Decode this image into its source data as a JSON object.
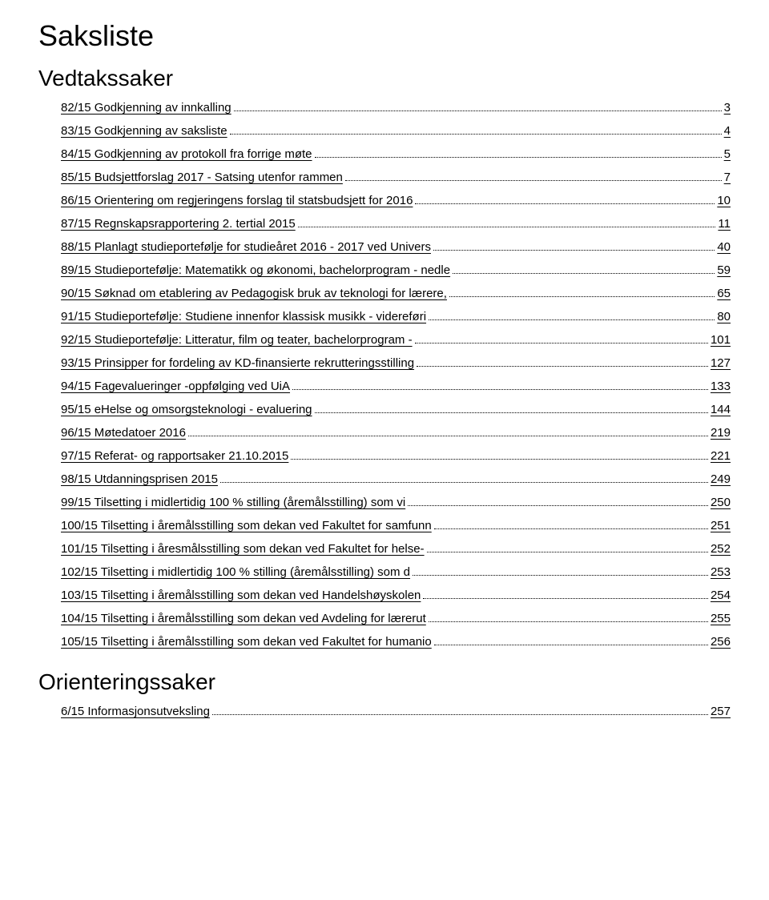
{
  "title": "Saksliste",
  "sections": [
    {
      "heading": "Vedtakssaker",
      "items": [
        {
          "label": "82/15 Godkjenning av innkalling",
          "page": "3"
        },
        {
          "label": "83/15 Godkjenning av saksliste",
          "page": "4"
        },
        {
          "label": "84/15 Godkjenning av protokoll fra forrige møte",
          "page": "5"
        },
        {
          "label": "85/15 Budsjettforslag 2017 - Satsing utenfor rammen",
          "page": "7"
        },
        {
          "label": "86/15 Orientering om regjeringens forslag til statsbudsjett for 2016",
          "page": "10"
        },
        {
          "label": "87/15 Regnskapsrapportering 2. tertial 2015",
          "page": "11"
        },
        {
          "label": "88/15 Planlagt studieportefølje for studieåret 2016 - 2017 ved Univers",
          "page": "40"
        },
        {
          "label": "89/15 Studieportefølje: Matematikk og økonomi, bachelorprogram - nedle",
          "page": "59"
        },
        {
          "label": "90/15 Søknad om etablering av Pedagogisk bruk av teknologi for lærere,",
          "page": "65"
        },
        {
          "label": "91/15 Studieportefølje: Studiene innenfor klassisk musikk - videreføri",
          "page": "80"
        },
        {
          "label": "92/15 Studieportefølje: Litteratur, film og teater, bachelorprogram -",
          "page": "101"
        },
        {
          "label": "93/15 Prinsipper for fordeling av KD-finansierte rekrutteringsstilling",
          "page": "127"
        },
        {
          "label": "94/15 Fagevalueringer -oppfølging ved UiA",
          "page": "133"
        },
        {
          "label": "95/15 eHelse og omsorgsteknologi - evaluering",
          "page": "144"
        },
        {
          "label": "96/15 Møtedatoer 2016",
          "page": "219"
        },
        {
          "label": "97/15 Referat- og rapportsaker 21.10.2015",
          "page": "221"
        },
        {
          "label": "98/15 Utdanningsprisen 2015",
          "page": "249"
        },
        {
          "label": "99/15 Tilsetting i midlertidig 100 % stilling (åremålsstilling) som vi",
          "page": "250"
        },
        {
          "label": "100/15 Tilsetting i åremålsstilling som dekan ved Fakultet for samfunn",
          "page": "251"
        },
        {
          "label": "101/15 Tilsetting i åresmålsstilling som dekan ved Fakultet for helse-",
          "page": "252"
        },
        {
          "label": "102/15 Tilsetting i midlertidig 100 % stilling (åremålsstilling) som d",
          "page": "253"
        },
        {
          "label": "103/15 Tilsetting i åremålsstilling som dekan ved Handelshøyskolen",
          "page": "254"
        },
        {
          "label": "104/15 Tilsetting i åremålsstilling som dekan ved Avdeling for lærerut",
          "page": "255"
        },
        {
          "label": "105/15 Tilsetting i åremålsstilling som dekan ved Fakultet for humanio",
          "page": "256"
        }
      ]
    },
    {
      "heading": "Orienteringssaker",
      "items": [
        {
          "label": "6/15 Informasjonsutveksling",
          "page": "257"
        }
      ]
    }
  ],
  "style": {
    "body_bg": "#ffffff",
    "text_color": "#000000",
    "h1_fontsize": 36,
    "h2_fontsize": 28,
    "row_fontsize": 15,
    "font_family": "Arial, Helvetica, sans-serif"
  }
}
